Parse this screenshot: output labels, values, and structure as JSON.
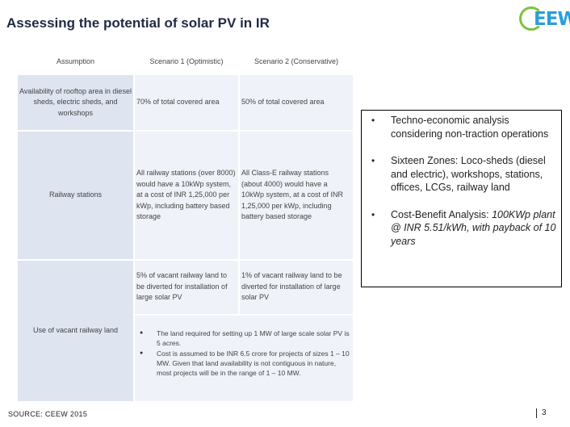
{
  "title": "Assessing the potential of solar PV in IR",
  "logo": {
    "text": "EEW"
  },
  "table": {
    "headers": [
      "Assumption",
      "Scenario 1 (Optimistic)",
      "Scenario 2 (Conservative)"
    ],
    "rows": [
      {
        "label": "Availability of rooftop area in diesel sheds, electric sheds, and workshops",
        "s1": "70% of total covered area",
        "s2": "50% of total covered area"
      },
      {
        "label": "Railway stations",
        "s1": "All railway stations (over 8000) would have a 10kWp system, at a cost of INR 1,25,000 per kWp, including battery based storage",
        "s2": "All Class-E railway stations (about 4000) would have a 10kWp system, at a cost of INR 1,25,000 per kWp, including battery based storage"
      },
      {
        "label": "Use of vacant railway land",
        "s1": "5% of vacant railway land to be diverted for installation of large solar PV",
        "s2": "1% of vacant railway land to be diverted for installation of large solar PV",
        "notes": [
          "The land required for setting up 1 MW of large scale solar PV is 5 acres.",
          "Cost is assumed to be INR 6.5 crore for projects of sizes 1 – 10 MW. Given that land availability is not contiguous in nature, most projects will be in the range of 1 – 10 MW."
        ]
      }
    ]
  },
  "bullets": {
    "b1": "Techno-economic analysis considering non-traction operations",
    "b2": "Sixteen Zones: Loco-sheds (diesel and electric), workshops, stations, offices, LCGs, railway land",
    "b3_prefix": "Cost-Benefit Analysis: ",
    "b3_italic": "100KWp plant @ INR 5.51/kWh, with payback of 10 years"
  },
  "source": "SOURCE: CEEW 2015",
  "page_number": "3"
}
